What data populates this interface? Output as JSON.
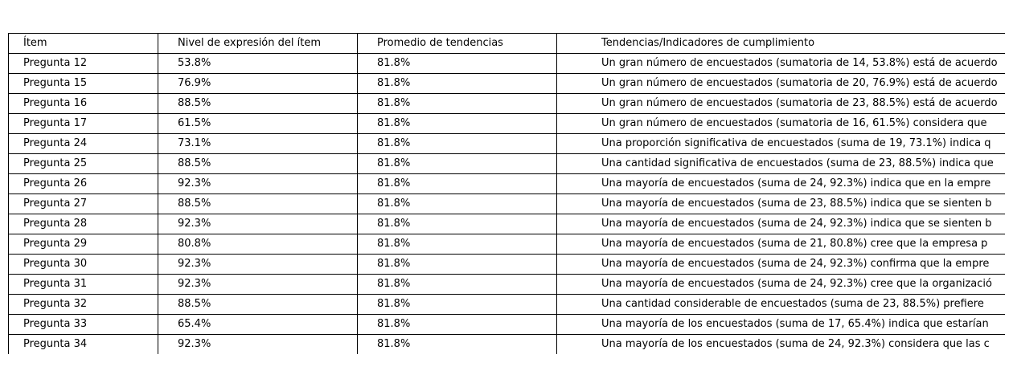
{
  "chart_data": {
    "type": "table",
    "columns": [
      "Ítem",
      "Nivel de expresión del ítem",
      "Promedio de tendencias",
      "Tendencias/Indicadores de cumplimiento"
    ],
    "rows": [
      [
        "Pregunta 12",
        "53.8%",
        "81.8%",
        "Un gran número de encuestados (sumatoria de 14, 53.8%) está de acuerdo"
      ],
      [
        "Pregunta 15",
        "76.9%",
        "81.8%",
        "Un gran número de encuestados (sumatoria de 20, 76.9%) está de acuerdo"
      ],
      [
        "Pregunta 16",
        "88.5%",
        "81.8%",
        "Un gran número de encuestados (sumatoria de 23, 88.5%) está de acuerdo"
      ],
      [
        "Pregunta 17",
        "61.5%",
        "81.8%",
        "Un gran número de encuestados (sumatoria de 16, 61.5%) considera que"
      ],
      [
        "Pregunta 24",
        "73.1%",
        "81.8%",
        "Una proporción significativa de encuestados (suma de 19, 73.1%) indica q"
      ],
      [
        "Pregunta 25",
        "88.5%",
        "81.8%",
        "Una cantidad significativa de encuestados (suma de 23, 88.5%) indica que"
      ],
      [
        "Pregunta 26",
        "92.3%",
        "81.8%",
        "Una mayoría de encuestados (suma de 24, 92.3%) indica que en la empre"
      ],
      [
        "Pregunta 27",
        "88.5%",
        "81.8%",
        "Una mayoría de encuestados (suma de 23, 88.5%) indica que se sienten b"
      ],
      [
        "Pregunta 28",
        "92.3%",
        "81.8%",
        "Una mayoría de encuestados (suma de 24, 92.3%) indica que se sienten b"
      ],
      [
        "Pregunta 29",
        "80.8%",
        "81.8%",
        "Una mayoría de encuestados (suma de 21, 80.8%) cree que la empresa p"
      ],
      [
        "Pregunta 30",
        "92.3%",
        "81.8%",
        "Una mayoría de encuestados (suma de 24, 92.3%) confirma que la empre"
      ],
      [
        "Pregunta 31",
        "92.3%",
        "81.8%",
        "Una mayoría de encuestados (suma de 24, 92.3%) cree que la organizació"
      ],
      [
        "Pregunta 32",
        "88.5%",
        "81.8%",
        "Una cantidad considerable de encuestados (suma de 23, 88.5%) prefiere"
      ],
      [
        "Pregunta 33",
        "65.4%",
        "81.8%",
        "Una mayoría de los encuestados (suma de 17, 65.4%) indica que estarían"
      ],
      [
        "Pregunta 34",
        "92.3%",
        "81.8%",
        "Una mayoría de los encuestados (suma de 24, 92.3%) considera que las c"
      ]
    ]
  }
}
